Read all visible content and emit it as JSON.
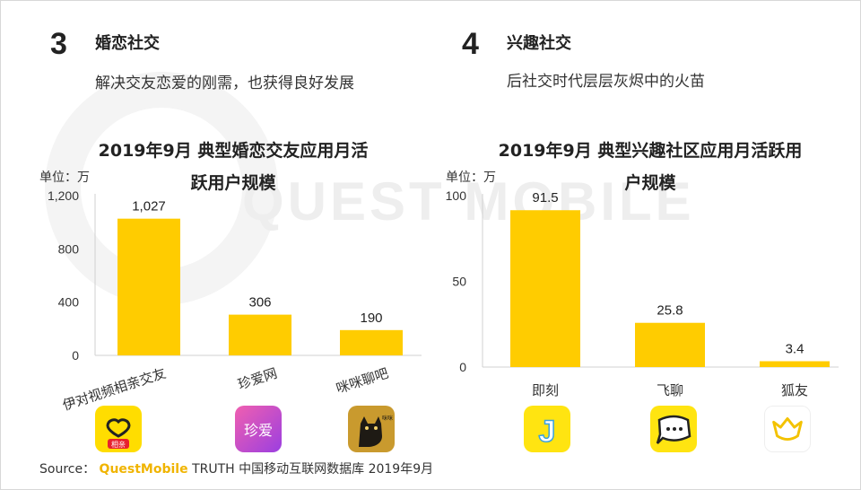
{
  "sections": [
    {
      "number": "3",
      "title": "婚恋社交",
      "subtitle": "解决交友恋爱的刚需，也获得良好发展"
    },
    {
      "number": "4",
      "title": "兴趣社交",
      "subtitle": "后社交时代层层灰烬中的火苗"
    }
  ],
  "watermark": "QUEST MOBILE",
  "chart_data": [
    {
      "type": "bar",
      "title_line1": "2019年9月 典型婚恋交友应用月活",
      "title_line2": "跃用户规模",
      "unit_label": "单位：万",
      "categories": [
        "伊对视频相亲交友",
        "珍爱网",
        "咪咪聊吧"
      ],
      "values": [
        1027,
        306,
        190
      ],
      "value_labels": [
        "1,027",
        "306",
        "190"
      ],
      "ylim": [
        0,
        1200
      ],
      "yticks": [
        0,
        400,
        800,
        1200
      ],
      "ytick_labels": [
        "0",
        "400",
        "800",
        "1,200"
      ],
      "bar_color": "#ffcc00",
      "tilted_labels": true
    },
    {
      "type": "bar",
      "title_line1": "2019年9月 典型兴趣社区应用月活跃用",
      "title_line2": "户规模",
      "unit_label": "单位：万",
      "categories": [
        "即刻",
        "飞聊",
        "狐友"
      ],
      "values": [
        91.5,
        25.8,
        3.4
      ],
      "value_labels": [
        "91.5",
        "25.8",
        "3.4"
      ],
      "ylim": [
        0,
        100
      ],
      "yticks": [
        0,
        50,
        100
      ],
      "ytick_labels": [
        "0",
        "50",
        "100"
      ],
      "bar_color": "#ffcc00",
      "tilted_labels": false
    }
  ],
  "app_icons": [
    {
      "icon": "yidui-app-icon",
      "label": "相亲",
      "bg": "#ffdd00"
    },
    {
      "icon": "zhenai-app-icon",
      "label": "珍爱",
      "bg": "#d64bd6"
    },
    {
      "icon": "mimi-app-icon",
      "label": "咪咪",
      "bg": "#c99a2e"
    },
    {
      "icon": "jike-app-icon",
      "label": "J",
      "bg": "#ffe411"
    },
    {
      "icon": "feiliao-app-icon",
      "label": "",
      "bg": "#ffe411"
    },
    {
      "icon": "huyou-app-icon",
      "label": "",
      "bg": "#ffffff"
    }
  ],
  "source": {
    "prefix": "Source：",
    "brand": "QuestMobile",
    "rest": " TRUTH 中国移动互联网数据库 2019年9月"
  }
}
